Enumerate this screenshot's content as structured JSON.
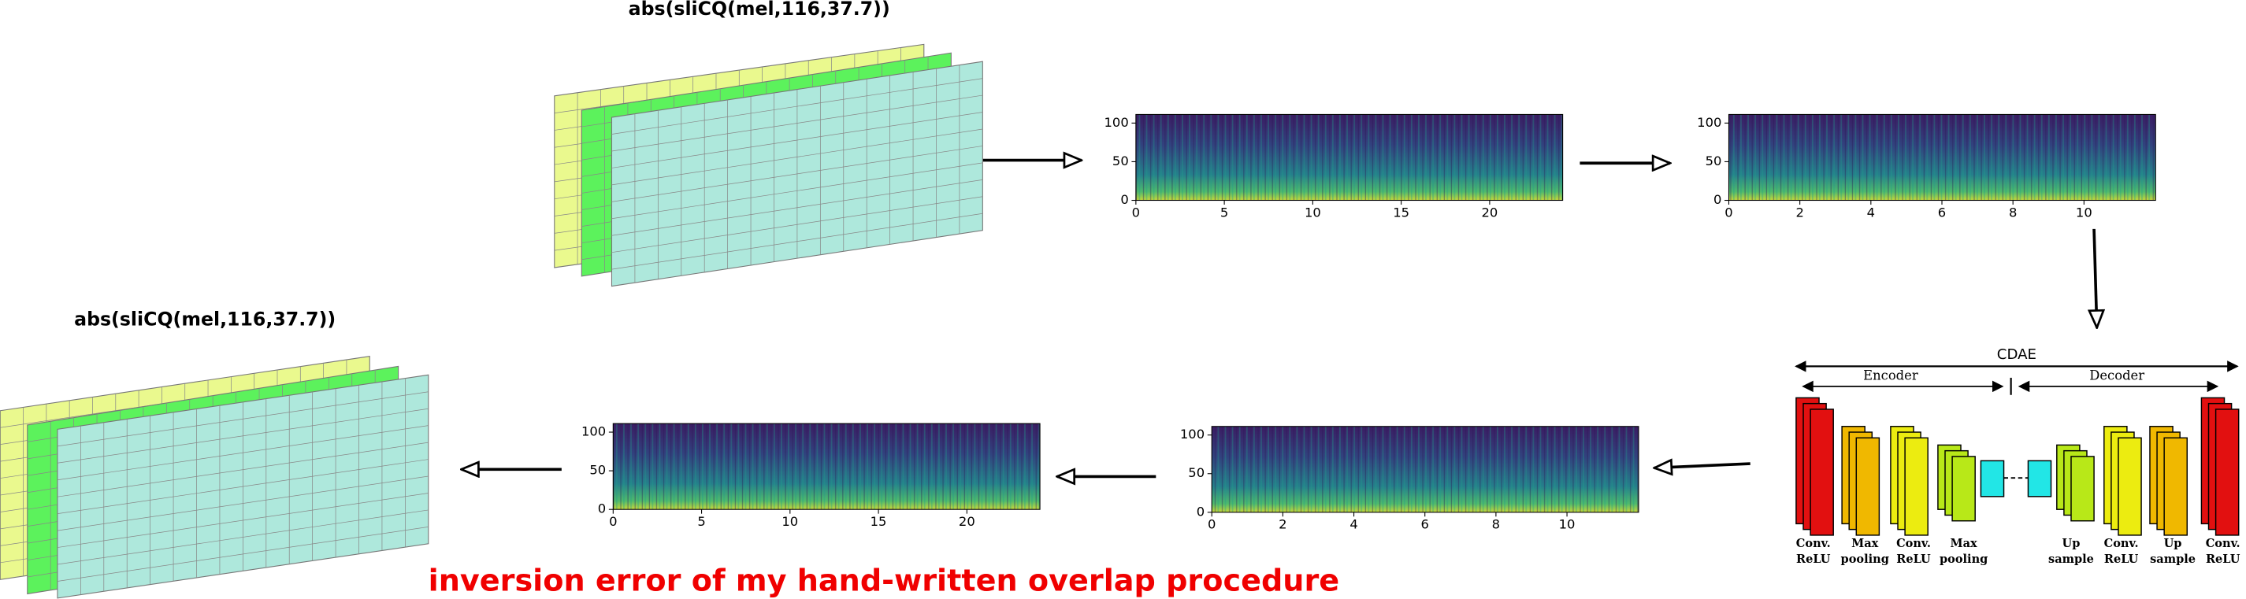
{
  "top_title": "abs(sliCQ(mel,116,37.7))",
  "bottom_title": "abs(sliCQ(mel,116,37.7))",
  "caption": "inversion error of my hand-written overlap procedure",
  "spectrograms": [
    {
      "yticks": [
        0,
        50,
        100
      ],
      "xticks": [
        0,
        5,
        10,
        15,
        20
      ]
    },
    {
      "yticks": [
        0,
        50,
        100
      ],
      "xticks": [
        0,
        2,
        4,
        6,
        8,
        10
      ]
    },
    {
      "yticks": [
        0,
        50,
        100
      ],
      "xticks": [
        0,
        2,
        4,
        6,
        8,
        10
      ]
    },
    {
      "yticks": [
        0,
        50,
        100
      ],
      "xticks": [
        0,
        5,
        10,
        15,
        20
      ]
    }
  ],
  "cdae": {
    "title": "CDAE",
    "encoder": "Encoder",
    "decoder": "Decoder",
    "layers": [
      [
        "Conv.",
        "ReLU"
      ],
      [
        "Max",
        "pooling"
      ],
      [
        "Conv.",
        "ReLU"
      ],
      [
        "Max",
        "pooling"
      ],
      [
        "Up",
        "sample"
      ],
      [
        "Conv.",
        "ReLU"
      ],
      [
        "Up",
        "sample"
      ],
      [
        "Conv.",
        "ReLU"
      ]
    ]
  }
}
